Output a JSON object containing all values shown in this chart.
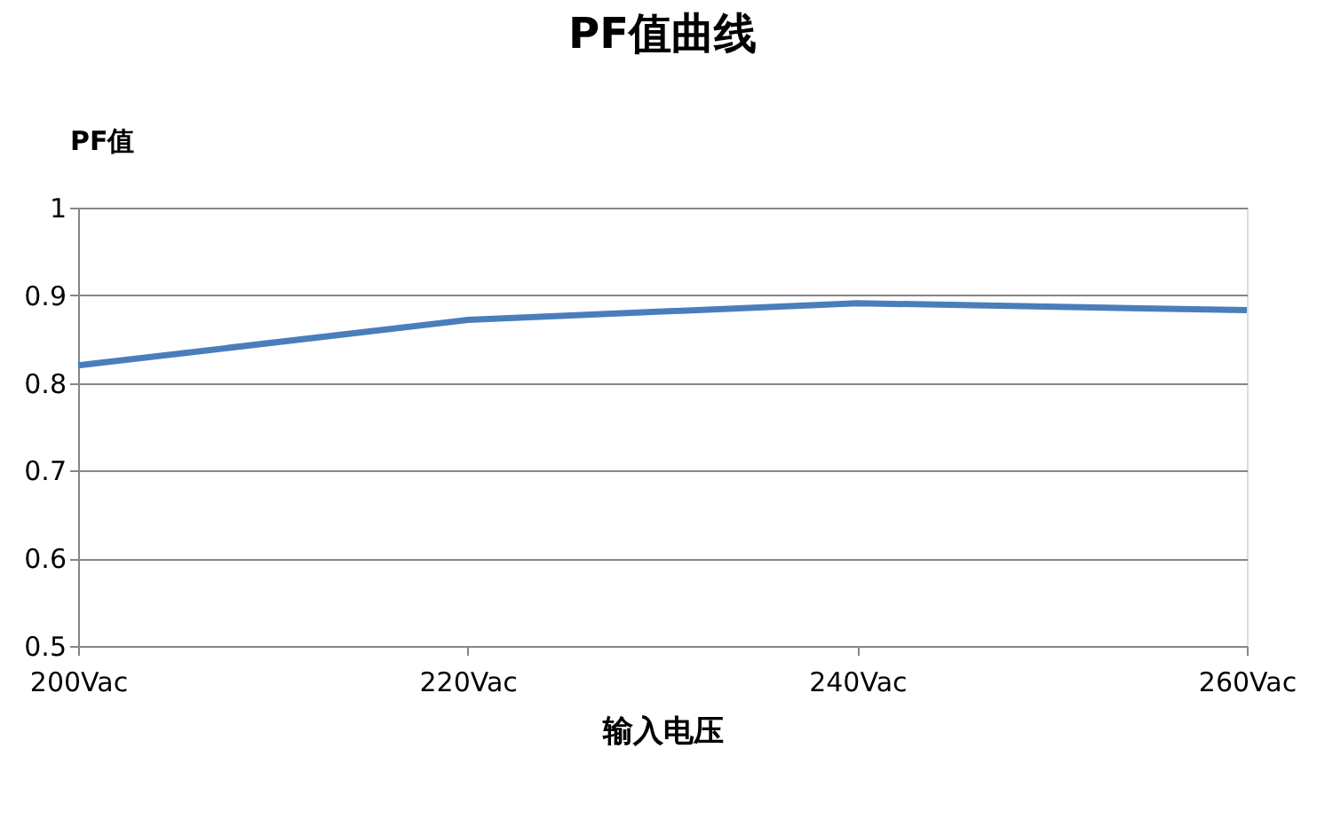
{
  "chart_data": {
    "type": "line",
    "title": "PF值曲线",
    "ylabel": "PF值",
    "xlabel": "输入电压",
    "categories": [
      "200Vac",
      "220Vac",
      "240Vac",
      "260Vac"
    ],
    "series": [
      {
        "color": "#4a7ebb",
        "values": [
          0.82,
          0.872,
          0.891,
          0.883
        ]
      }
    ],
    "ylim": [
      0.5,
      1
    ],
    "yticks": [
      0.5,
      0.6,
      0.7,
      0.8,
      0.9,
      1
    ],
    "grid": "y",
    "marker": "none",
    "line_style": "solid"
  }
}
